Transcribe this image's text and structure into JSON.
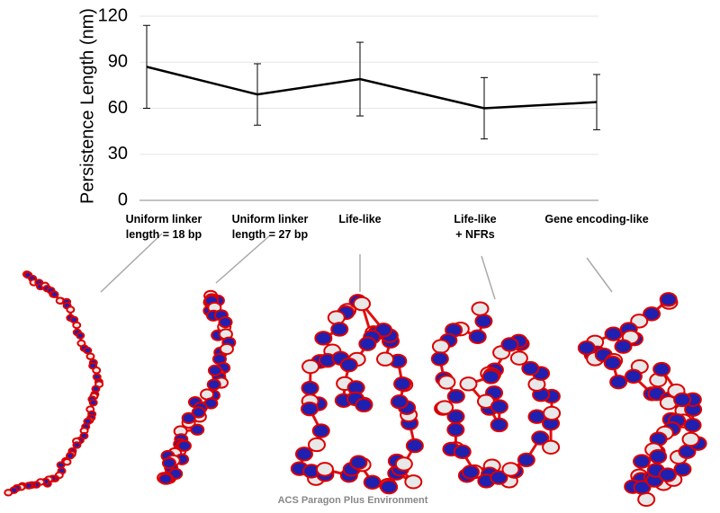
{
  "chart_data": {
    "type": "line",
    "ylabel": "Persistence Length (nm)",
    "categories": [
      "Uniform linker\nlength = 18 bp",
      "Uniform linker\nlength = 27 bp",
      "Life-like",
      "Life-like\n+ NFRs",
      "Gene encoding-like"
    ],
    "values": [
      87,
      69,
      79,
      60,
      64
    ],
    "errors": [
      27,
      20,
      24,
      20,
      18
    ],
    "color": "#000000",
    "ylim": [
      0,
      120
    ],
    "yticks": [
      0,
      30,
      60,
      90,
      120
    ],
    "grid": true
  },
  "footer": "ACS Paragon Plus Environment"
}
